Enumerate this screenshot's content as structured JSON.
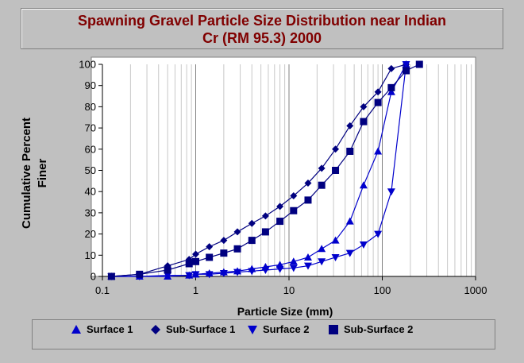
{
  "chart_data": {
    "type": "line",
    "title_line1": "Spawning Gravel Particle Size Distribution near Indian",
    "title_line2": "Cr (RM 95.3) 2000",
    "xlabel": "Particle Size (mm)",
    "ylabel_line1": "Cumulative Percent",
    "ylabel_line2": "Finer",
    "x_scale": "log",
    "xlim": [
      0.1,
      1000
    ],
    "ylim": [
      0,
      100
    ],
    "x_ticks": [
      "0.1",
      "1",
      "10",
      "100",
      "1000"
    ],
    "y_ticks": [
      "0",
      "10",
      "20",
      "30",
      "40",
      "50",
      "60",
      "70",
      "80",
      "90",
      "100"
    ],
    "grid": "vertical minor and major lines on log x",
    "legend_position": "bottom",
    "series": [
      {
        "name": "Surface 1",
        "marker": "triangle-up",
        "color": "#0000cc",
        "points": [
          [
            0.125,
            0
          ],
          [
            0.25,
            0
          ],
          [
            0.5,
            0
          ],
          [
            0.85,
            0.5
          ],
          [
            1,
            1
          ],
          [
            1.4,
            1.5
          ],
          [
            2,
            2
          ],
          [
            2.8,
            2.5
          ],
          [
            4,
            3.5
          ],
          [
            5.6,
            4.5
          ],
          [
            8,
            5.5
          ],
          [
            11.2,
            7
          ],
          [
            16,
            9
          ],
          [
            22.4,
            13
          ],
          [
            31.5,
            17
          ],
          [
            45,
            26
          ],
          [
            63,
            43
          ],
          [
            90,
            59
          ],
          [
            125,
            87
          ],
          [
            180,
            100
          ]
        ]
      },
      {
        "name": "Sub-Surface 1",
        "marker": "diamond",
        "color": "#000080",
        "points": [
          [
            0.125,
            0
          ],
          [
            0.25,
            1
          ],
          [
            0.5,
            5
          ],
          [
            0.85,
            8
          ],
          [
            1,
            10.5
          ],
          [
            1.4,
            14
          ],
          [
            2,
            17
          ],
          [
            2.8,
            21
          ],
          [
            4,
            25
          ],
          [
            5.6,
            28.5
          ],
          [
            8,
            33
          ],
          [
            11.2,
            38
          ],
          [
            16,
            44
          ],
          [
            22.4,
            51
          ],
          [
            31.5,
            60
          ],
          [
            45,
            71
          ],
          [
            63,
            80
          ],
          [
            90,
            87
          ],
          [
            125,
            98
          ],
          [
            180,
            100
          ]
        ]
      },
      {
        "name": "Surface 2",
        "marker": "triangle-down",
        "color": "#0000cc",
        "points": [
          [
            0.125,
            0
          ],
          [
            0.25,
            0
          ],
          [
            0.5,
            0.5
          ],
          [
            0.85,
            0.5
          ],
          [
            1,
            1
          ],
          [
            1.4,
            1
          ],
          [
            2,
            1.5
          ],
          [
            2.8,
            2
          ],
          [
            4,
            2.5
          ],
          [
            5.6,
            3
          ],
          [
            8,
            3.5
          ],
          [
            11.2,
            4
          ],
          [
            16,
            5
          ],
          [
            22.4,
            7
          ],
          [
            31.5,
            9
          ],
          [
            45,
            11
          ],
          [
            63,
            15
          ],
          [
            90,
            20
          ],
          [
            125,
            40
          ],
          [
            180,
            100
          ]
        ]
      },
      {
        "name": "Sub-Surface 2",
        "marker": "square",
        "color": "#000080",
        "points": [
          [
            0.125,
            0
          ],
          [
            0.25,
            1
          ],
          [
            0.5,
            3
          ],
          [
            0.85,
            6
          ],
          [
            1,
            7
          ],
          [
            1.4,
            9
          ],
          [
            2,
            11
          ],
          [
            2.8,
            13
          ],
          [
            4,
            17
          ],
          [
            5.6,
            21
          ],
          [
            8,
            26
          ],
          [
            11.2,
            31
          ],
          [
            16,
            36
          ],
          [
            22.4,
            43
          ],
          [
            31.5,
            50
          ],
          [
            45,
            59
          ],
          [
            63,
            73
          ],
          [
            90,
            82
          ],
          [
            125,
            89
          ],
          [
            180,
            97
          ],
          [
            250,
            100
          ]
        ]
      }
    ],
    "legend_labels": [
      "Surface 1",
      "Sub-Surface 1",
      "Surface 2",
      "Sub-Surface 2"
    ]
  }
}
